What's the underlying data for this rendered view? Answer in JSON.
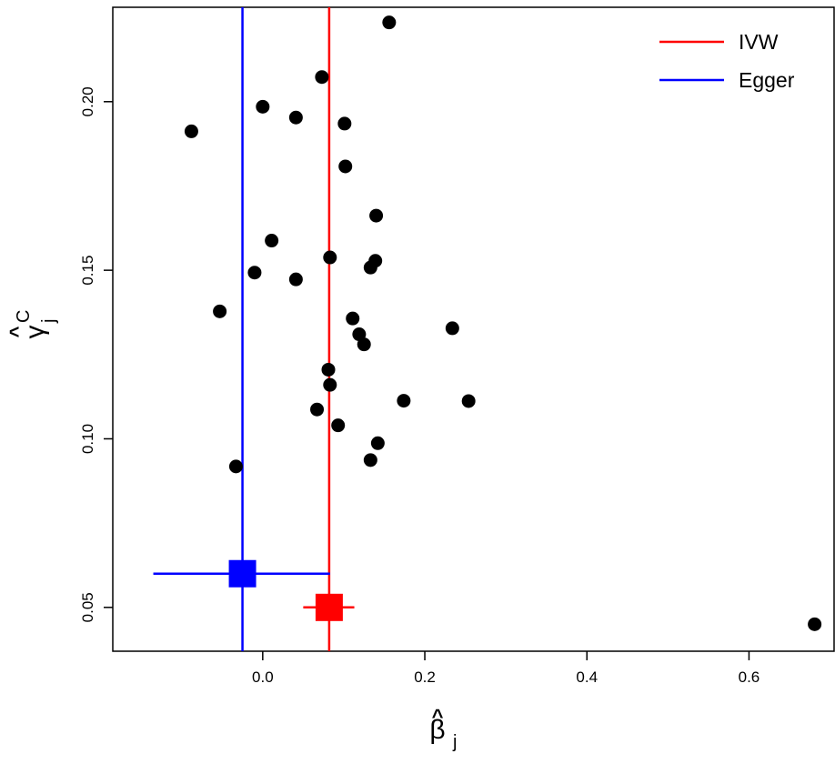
{
  "chart_data": {
    "type": "scatter",
    "xlabel": "β̂j",
    "ylabel": "γ̂Cj",
    "x_axis_symbol": "β",
    "x_axis_subscript": "j",
    "y_axis_symbol": "γ",
    "y_axis_subscript": "j",
    "y_axis_superscript": "C",
    "xlim": [
      -0.185,
      0.705
    ],
    "ylim": [
      0.037,
      0.228
    ],
    "x_ticks": [
      0.0,
      0.2,
      0.4,
      0.6
    ],
    "x_tick_labels": [
      "0.0",
      "0.2",
      "0.4",
      "0.6"
    ],
    "y_ticks": [
      0.05,
      0.1,
      0.15,
      0.2
    ],
    "y_tick_labels": [
      "0.05",
      "0.10",
      "0.15",
      "0.20"
    ],
    "grid": false,
    "legend_position": "top-right",
    "series": [
      {
        "name": "",
        "kind": "points",
        "color": "#000000",
        "points": [
          {
            "x": 0.156,
            "y": 0.2235
          },
          {
            "x": 0.073,
            "y": 0.2073
          },
          {
            "x": 0.0,
            "y": 0.1985
          },
          {
            "x": 0.041,
            "y": 0.1953
          },
          {
            "x": 0.101,
            "y": 0.1935
          },
          {
            "x": -0.088,
            "y": 0.1912
          },
          {
            "x": 0.102,
            "y": 0.1808
          },
          {
            "x": 0.14,
            "y": 0.1662
          },
          {
            "x": 0.011,
            "y": 0.1588
          },
          {
            "x": 0.083,
            "y": 0.1538
          },
          {
            "x": 0.139,
            "y": 0.1528
          },
          {
            "x": 0.133,
            "y": 0.1508
          },
          {
            "x": -0.01,
            "y": 0.1493
          },
          {
            "x": 0.041,
            "y": 0.1473
          },
          {
            "x": -0.053,
            "y": 0.1378
          },
          {
            "x": 0.111,
            "y": 0.1357
          },
          {
            "x": 0.119,
            "y": 0.131
          },
          {
            "x": 0.125,
            "y": 0.128
          },
          {
            "x": 0.234,
            "y": 0.1328
          },
          {
            "x": 0.081,
            "y": 0.1205
          },
          {
            "x": 0.083,
            "y": 0.116
          },
          {
            "x": 0.174,
            "y": 0.1113
          },
          {
            "x": 0.254,
            "y": 0.1112
          },
          {
            "x": 0.067,
            "y": 0.1087
          },
          {
            "x": 0.093,
            "y": 0.104
          },
          {
            "x": 0.142,
            "y": 0.0987
          },
          {
            "x": 0.133,
            "y": 0.0937
          },
          {
            "x": -0.033,
            "y": 0.0918
          },
          {
            "x": 0.681,
            "y": 0.045
          }
        ]
      },
      {
        "name": "IVW",
        "kind": "estimate",
        "color": "#ff0000",
        "estimate_x": 0.082,
        "marker_y": 0.05,
        "ci_x": [
          0.05,
          0.113
        ]
      },
      {
        "name": "Egger",
        "kind": "estimate",
        "color": "#0000ff",
        "estimate_x": -0.025,
        "marker_y": 0.06,
        "ci_x": [
          -0.135,
          0.083
        ]
      }
    ],
    "legend": [
      {
        "label": "IVW",
        "color": "#ff0000"
      },
      {
        "label": "Egger",
        "color": "#0000ff"
      }
    ]
  }
}
